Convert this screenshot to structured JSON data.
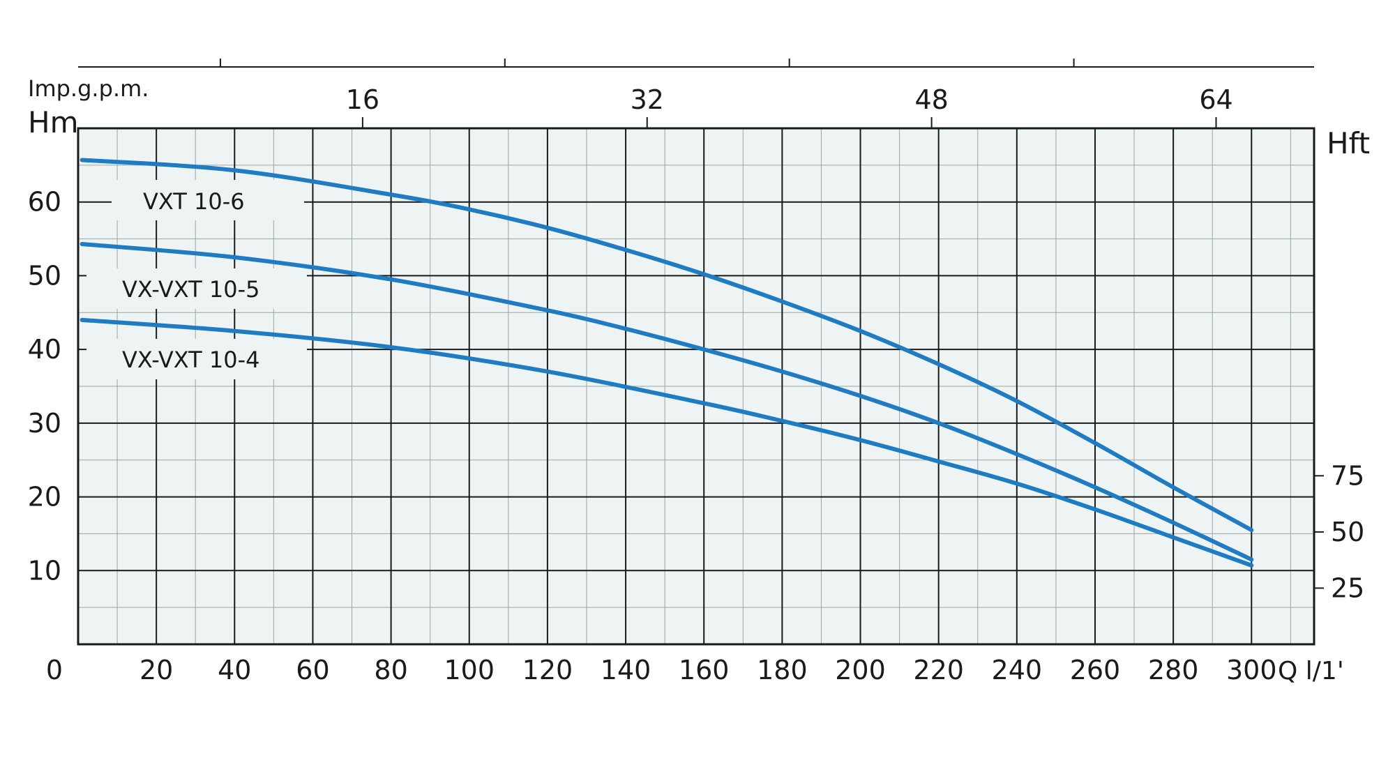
{
  "chart_data": {
    "type": "line",
    "y_unit_left": "Hm",
    "y_unit_right": "Hft",
    "x_unit_top": "Imp.g.p.m.",
    "x_unit_bottom": "Q l/1'",
    "x_axis": {
      "ticks": [
        0,
        20,
        40,
        60,
        80,
        100,
        120,
        140,
        160,
        180,
        200,
        220,
        240,
        260,
        280,
        300
      ],
      "range": [
        0,
        316
      ]
    },
    "y_axis_left": {
      "ticks": [
        10,
        20,
        30,
        40,
        50,
        60
      ],
      "range": [
        0,
        70
      ]
    },
    "x_axis_top": {
      "ticks": [
        16,
        32,
        48,
        64
      ]
    },
    "y_axis_right": {
      "ticks": [
        25,
        50,
        75
      ]
    },
    "grid": true,
    "colors": {
      "curve": "#1f7cc2",
      "grid": "#1a1a1a",
      "plot_bg": "#eef4f4"
    },
    "series": [
      {
        "name": "VXT 10-6",
        "x": [
          0,
          40,
          80,
          100,
          120,
          140,
          160,
          180,
          200,
          220,
          240,
          260,
          280,
          300
        ],
        "y": [
          65.7,
          64.3,
          61.0,
          59.0,
          56.5,
          53.5,
          50.2,
          46.5,
          42.5,
          38.0,
          33.0,
          27.3,
          21.3,
          15.5
        ]
      },
      {
        "name": "VX-VXT 10-5",
        "x": [
          0,
          40,
          80,
          120,
          140,
          160,
          180,
          200,
          220,
          240,
          260,
          280,
          300
        ],
        "y": [
          54.3,
          52.5,
          49.5,
          45.3,
          42.8,
          40.0,
          37.0,
          33.7,
          30.0,
          25.8,
          21.3,
          16.5,
          11.5
        ]
      },
      {
        "name": "VX-VXT 10-4",
        "x": [
          0,
          40,
          80,
          120,
          160,
          180,
          200,
          220,
          240,
          260,
          280,
          300
        ],
        "y": [
          44.0,
          42.5,
          40.3,
          37.0,
          32.7,
          30.3,
          27.7,
          24.8,
          21.8,
          18.3,
          14.5,
          10.7
        ]
      }
    ]
  }
}
